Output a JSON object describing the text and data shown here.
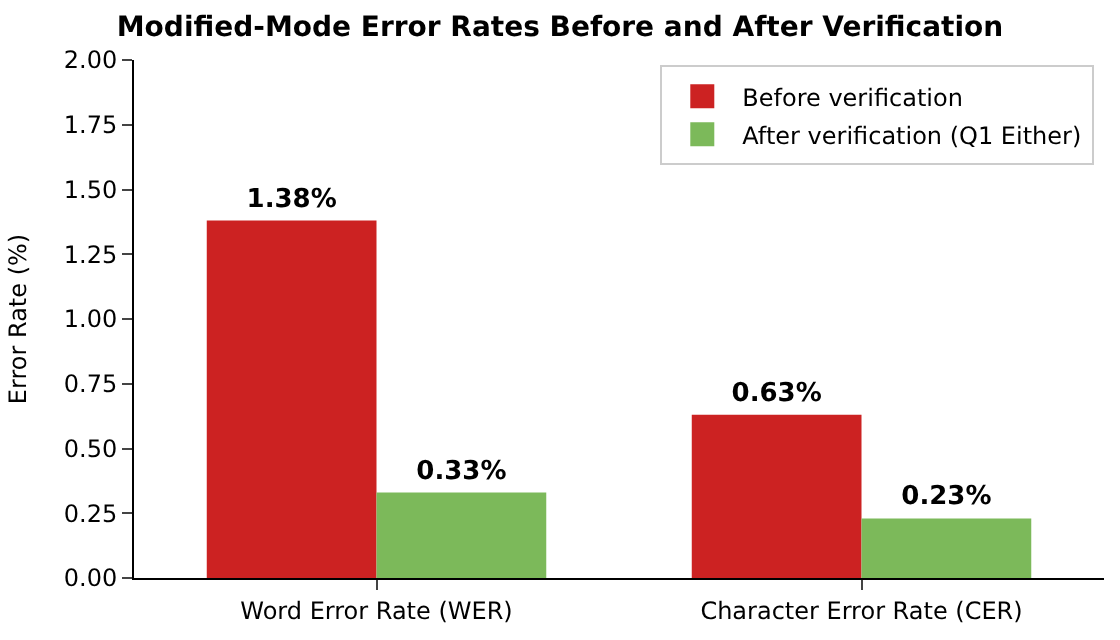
{
  "chart_data": {
    "type": "bar",
    "title": "Modified-Mode Error Rates Before and After Verification",
    "ylabel": "Error Rate (%)",
    "categories": [
      "Word Error Rate (WER)",
      "Character Error Rate (CER)"
    ],
    "series": [
      {
        "name": "Before verification",
        "color": "#cc2222",
        "values": [
          1.38,
          0.63
        ],
        "value_labels": [
          "1.38%",
          "0.63%"
        ]
      },
      {
        "name": "After verification (Q1 Either)",
        "color": "#7cb95a",
        "values": [
          0.33,
          0.23
        ],
        "value_labels": [
          "0.33%",
          "0.23%"
        ]
      }
    ],
    "ylim": [
      0,
      2
    ],
    "yticks": [
      {
        "value": 0,
        "label": "0.00"
      },
      {
        "value": 0.25,
        "label": "0.25"
      },
      {
        "value": 0.5,
        "label": "0.50"
      },
      {
        "value": 0.75,
        "label": "0.75"
      },
      {
        "value": 1,
        "label": "1.00"
      },
      {
        "value": 1.25,
        "label": "1.25"
      },
      {
        "value": 1.5,
        "label": "1.50"
      },
      {
        "value": 1.75,
        "label": "1.75"
      },
      {
        "value": 2,
        "label": "2.00"
      }
    ],
    "legend": "top right"
  }
}
